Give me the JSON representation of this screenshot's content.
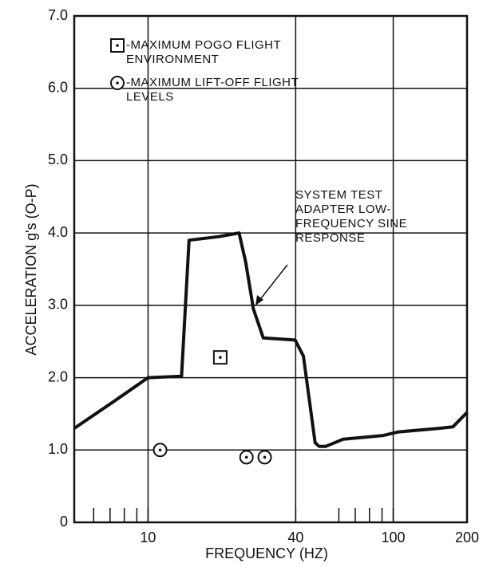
{
  "chart_data": {
    "type": "line",
    "x_label": "FREQUENCY (HZ)",
    "y_label": "ACCELERATION  g's (O-P)",
    "xscale": "log",
    "xlim": [
      5,
      200
    ],
    "xticks": [
      10,
      40,
      100,
      200
    ],
    "xminorticks": [
      6,
      7,
      8,
      9,
      60,
      70,
      80,
      90
    ],
    "ylim": [
      0,
      7
    ],
    "yticks": [
      0,
      {
        "value": 1,
        "label": "1.0"
      },
      {
        "value": 2,
        "label": "2.0"
      },
      {
        "value": 3,
        "label": "3.0"
      },
      {
        "value": 4,
        "label": "4.0"
      },
      {
        "value": 5,
        "label": "5.0"
      },
      {
        "value": 6,
        "label": "6.0"
      },
      {
        "value": 7,
        "label": "7.0"
      }
    ],
    "xgrid": [
      10,
      40,
      100
    ],
    "grid": true,
    "line": {
      "color": "#111111",
      "x": [
        5,
        7.1,
        10,
        13.7,
        14.7,
        19.5,
        23.5,
        25,
        26.9,
        29.5,
        39.8,
        43,
        48,
        49.9,
        53,
        62.5,
        91,
        105,
        154,
        175,
        200
      ],
      "values": [
        1.3,
        1.65,
        2.0,
        2.02,
        3.9,
        3.95,
        4.0,
        3.6,
        2.95,
        2.55,
        2.52,
        2.3,
        1.1,
        1.05,
        1.05,
        1.15,
        1.2,
        1.25,
        1.3,
        1.32,
        1.52
      ]
    },
    "series": [
      {
        "name": "-MAXIMUM POGO FLIGHT\nENVIRONMENT",
        "marker": "square",
        "color": "#111111",
        "x": [
          19.7
        ],
        "values": [
          2.28
        ]
      },
      {
        "name": "-MAXIMUM LIFT-OFF FLIGHT\nLEVELS",
        "marker": "circle",
        "color": "#111111",
        "x": [
          11.2,
          25.2,
          29.9
        ],
        "values": [
          1.0,
          0.9,
          0.9
        ]
      }
    ],
    "annotation": "SYSTEM TEST\nADAPTER LOW-\nFREQUENCY SINE\nRESPONSE"
  }
}
